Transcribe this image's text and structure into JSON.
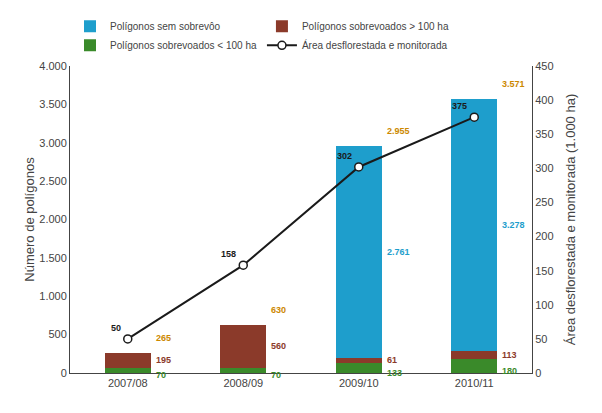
{
  "chart_data": {
    "type": "bar",
    "stacked": true,
    "categories": [
      "2007/08",
      "2008/09",
      "2009/10",
      "2010/11"
    ],
    "series": [
      {
        "name": "Polígonos sobrevoados < 100 ha",
        "color": "#3A8A2A",
        "values": [
          70,
          70,
          133,
          180
        ],
        "data_labels": true
      },
      {
        "name": "Polígonos sobrevoados > 100 ha",
        "color": "#8B3A2A",
        "values": [
          195,
          560,
          61,
          113
        ],
        "data_labels": true
      },
      {
        "name": "Polígonos sem sobrevôo",
        "color": "#1E9ECC",
        "values": [
          0,
          0,
          2761,
          3278
        ],
        "value_labels": [
          null,
          null,
          "2.761",
          "3.278"
        ],
        "data_labels": true
      },
      {
        "name": "Área desflorestada e monitorada",
        "type": "line",
        "axis": "y2",
        "color": "#1a1a1a",
        "marker": "circle",
        "values": [
          50,
          158,
          302,
          375
        ],
        "data_labels": true
      }
    ],
    "totals": {
      "values": [
        265,
        630,
        2955,
        3571
      ],
      "value_labels": [
        "265",
        "630",
        "2.955",
        "3.571"
      ],
      "color": "#CC8800"
    },
    "ylabel": "Número de polígonos",
    "y2label": "Área desflorestada e monitorada (1.000 ha)",
    "ylim": [
      0,
      4000
    ],
    "yticks": [
      0,
      500,
      {
        "value": 1000,
        "label": "1.000"
      },
      {
        "value": 1500,
        "label": "1.500"
      },
      {
        "value": 2000,
        "label": "2.000"
      },
      {
        "value": 2500,
        "label": "2.500"
      },
      {
        "value": 3000,
        "label": "3.000"
      },
      {
        "value": 3500,
        "label": "3.500"
      },
      {
        "value": 4000,
        "label": "4.000"
      }
    ],
    "y2lim": [
      0,
      450
    ],
    "y2ticks": [
      0,
      50,
      100,
      150,
      200,
      250,
      300,
      350,
      400,
      450
    ],
    "grid": false,
    "legend": "upper left"
  }
}
